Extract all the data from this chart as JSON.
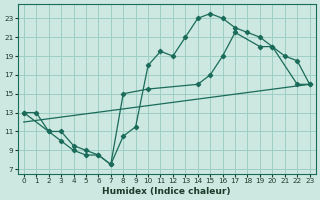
{
  "xlabel": "Humidex (Indice chaleur)",
  "bg_color": "#cce8e0",
  "grid_color": "#9ecec4",
  "line_color": "#1a6b5a",
  "xlim": [
    -0.5,
    23.5
  ],
  "ylim": [
    6.5,
    24.5
  ],
  "xticks": [
    0,
    1,
    2,
    3,
    4,
    5,
    6,
    7,
    8,
    9,
    10,
    11,
    12,
    13,
    14,
    15,
    16,
    17,
    18,
    19,
    20,
    21,
    22,
    23
  ],
  "yticks": [
    7,
    9,
    11,
    13,
    15,
    17,
    19,
    21,
    23
  ],
  "curve1_x": [
    0,
    1,
    2,
    3,
    4,
    5,
    6,
    7,
    8,
    9,
    10,
    11,
    12,
    13,
    14,
    15,
    16,
    17,
    18,
    19,
    20,
    21,
    22,
    23
  ],
  "curve1_y": [
    13,
    13,
    11,
    11,
    9.5,
    9,
    8.5,
    7.5,
    10.5,
    11.5,
    18,
    19.5,
    19,
    21,
    23,
    23.5,
    23,
    22,
    21.5,
    21,
    20,
    19,
    18.5,
    16
  ],
  "curve2_x": [
    0,
    2,
    3,
    4,
    5,
    6,
    7,
    8,
    10,
    14,
    15,
    16,
    17,
    19,
    20,
    22,
    23
  ],
  "curve2_y": [
    13,
    11,
    10,
    9,
    8.5,
    8.5,
    7.5,
    15,
    15.5,
    16,
    17,
    19,
    21.5,
    20,
    20,
    16,
    16
  ],
  "line1_x": [
    0,
    23
  ],
  "line1_y": [
    12,
    16
  ]
}
